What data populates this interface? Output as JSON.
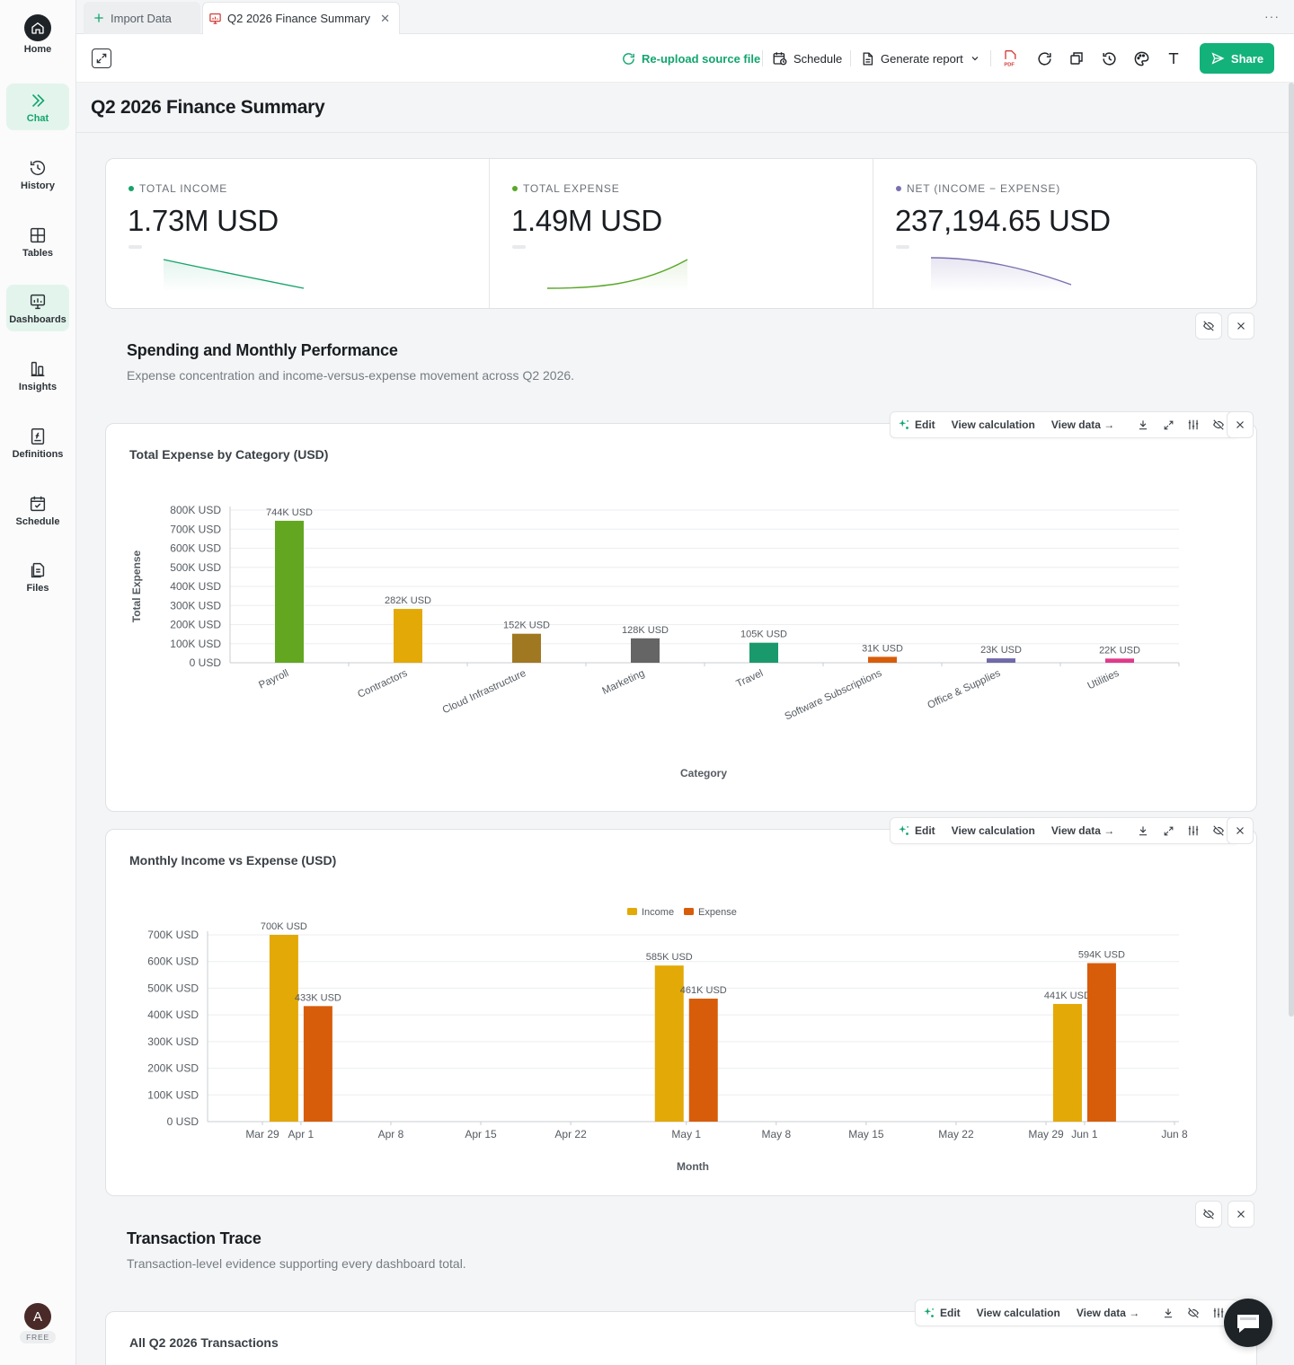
{
  "sidebar": {
    "home": "Home",
    "items": [
      {
        "label": "Chat",
        "icon": "chevrons-right-icon",
        "active": true
      },
      {
        "label": "History",
        "icon": "history-icon"
      },
      {
        "label": "Tables",
        "icon": "table-grid-icon"
      },
      {
        "label": "Dashboards",
        "icon": "dashboard-icon"
      },
      {
        "label": "Insights",
        "icon": "insights-icon"
      },
      {
        "label": "Definitions",
        "icon": "function-icon"
      },
      {
        "label": "Schedule",
        "icon": "calendar-icon"
      },
      {
        "label": "Files",
        "icon": "files-icon"
      }
    ],
    "avatar_initial": "A",
    "plan_badge": "FREE"
  },
  "tabs": {
    "import": "Import Data",
    "current": "Q2 2026 Finance Summary"
  },
  "toolbar": {
    "reupload": "Re-upload source file",
    "schedule": "Schedule",
    "generate_report": "Generate report",
    "share": "Share",
    "accent_color": "#13b27a"
  },
  "page": {
    "title": "Q2 2026 Finance Summary"
  },
  "kpis": [
    {
      "label": "TOTAL INCOME",
      "value": "1.73M USD",
      "color": "#16a36a"
    },
    {
      "label": "TOTAL EXPENSE",
      "value": "1.49M USD",
      "color": "#5aa72a"
    },
    {
      "label": "NET (INCOME − EXPENSE)",
      "value": "237,194.65 USD",
      "color": "#7b6fb0"
    }
  ],
  "section1": {
    "title": "Spending and Monthly Performance",
    "subtitle": "Expense concentration and income-versus-expense movement across Q2 2026."
  },
  "section2": {
    "title": "Transaction Trace",
    "subtitle": "Transaction-level evidence supporting every dashboard total."
  },
  "card_tools": {
    "edit": "Edit",
    "view_calc": "View calculation",
    "view_data": "View data →"
  },
  "chart1": {
    "title": "Total Expense by Category (USD)"
  },
  "chart2": {
    "title": "Monthly Income vs Expense (USD)"
  },
  "table_card": {
    "title": "All Q2 2026 Transactions"
  },
  "chart_data": [
    {
      "type": "bar",
      "title": "Total Expense by Category (USD)",
      "xlabel": "Category",
      "ylabel": "Total Expense",
      "ylim": [
        0,
        800000
      ],
      "y_ticks": [
        "0 USD",
        "100K USD",
        "200K USD",
        "300K USD",
        "400K USD",
        "500K USD",
        "600K USD",
        "700K USD",
        "800K USD"
      ],
      "categories": [
        "Payroll",
        "Contractors",
        "Cloud Infrastructure",
        "Marketing",
        "Travel",
        "Software Subscriptions",
        "Office & Supplies",
        "Utilities"
      ],
      "values": [
        744000,
        282000,
        152000,
        128000,
        105000,
        31000,
        23000,
        22000
      ],
      "data_labels": [
        "744K USD",
        "282K USD",
        "152K USD",
        "128K USD",
        "105K USD",
        "31K USD",
        "23K USD",
        "22K USD"
      ],
      "colors": [
        "#63a721",
        "#e3a906",
        "#a07821",
        "#656565",
        "#1a9a6c",
        "#d75d0b",
        "#6f6aa8",
        "#e0398b"
      ],
      "grid": true
    },
    {
      "type": "bar",
      "title": "Monthly Income vs Expense (USD)",
      "xlabel": "Month",
      "ylabel": "",
      "ylim": [
        0,
        700000
      ],
      "y_ticks": [
        "0 USD",
        "100K USD",
        "200K USD",
        "300K USD",
        "400K USD",
        "500K USD",
        "600K USD",
        "700K USD"
      ],
      "x_ticks": [
        "Mar 29",
        "Apr 1",
        "Apr 8",
        "Apr 15",
        "Apr 22",
        "May 1",
        "May 8",
        "May 15",
        "May 22",
        "May 29",
        "Jun 1",
        "Jun 8"
      ],
      "x": [
        "2026-04-01",
        "2026-05-01",
        "2026-06-01"
      ],
      "legend_position": "top-center",
      "series": [
        {
          "name": "Income",
          "color": "#e3a906",
          "values": [
            700000,
            585000,
            441000
          ],
          "data_labels": [
            "700K USD",
            "585K USD",
            "441K USD"
          ]
        },
        {
          "name": "Expense",
          "color": "#d75d0b",
          "values": [
            433000,
            461000,
            594000
          ],
          "data_labels": [
            "433K USD",
            "461K USD",
            "594K USD"
          ]
        }
      ],
      "grid": true
    }
  ]
}
